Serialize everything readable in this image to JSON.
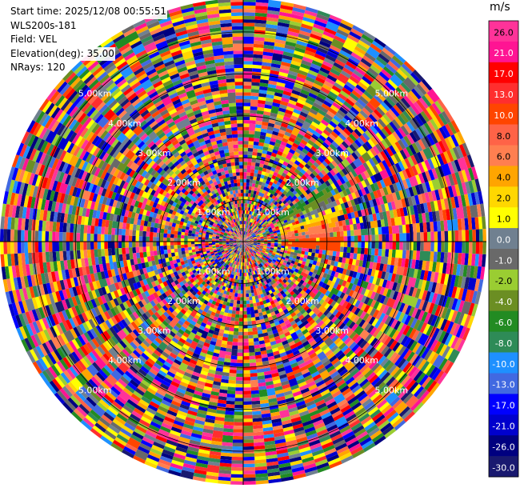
{
  "info": {
    "start_time": "Start time: 2025/12/08 00:55:51",
    "instrument": "WLS200s-181",
    "field": "Field: VEL",
    "elevation": "Elevation(deg): 35.00",
    "nrays": "NRays: 120"
  },
  "colorbar": {
    "title": "m/s",
    "ticks": [
      "26.0",
      "21.0",
      "17.0",
      "13.0",
      "10.0",
      "8.0",
      "6.0",
      "4.0",
      "2.0",
      "1.0",
      "0.0",
      "-1.0",
      "-2.0",
      "-4.0",
      "-6.0",
      "-8.0",
      "-10.0",
      "-13.0",
      "-17.0",
      "-21.0",
      "-26.0",
      "-30.0"
    ],
    "colors": [
      "#ff3399",
      "#ff1493",
      "#ff0000",
      "#ff2e2e",
      "#ff4500",
      "#ff6347",
      "#ff7f50",
      "#ffa500",
      "#ffd700",
      "#ffff00",
      "#708090",
      "#696969",
      "#9acd32",
      "#6b8e23",
      "#228b22",
      "#2e8b57",
      "#1e90ff",
      "#4169e1",
      "#0000ff",
      "#0000cd",
      "#000080",
      "#191970"
    ]
  },
  "chart_data": {
    "type": "heatmap",
    "projection": "polar-ppi",
    "field": "VEL",
    "units": "m/s",
    "nrays": 120,
    "range_rings_km": [
      1.0,
      2.0,
      3.0,
      4.0,
      5.0
    ],
    "ring_labels": [
      "1.00km",
      "2.00km",
      "3.00km",
      "4.00km",
      "5.00km"
    ],
    "max_range_km": 5.8,
    "gates_per_ray": 70,
    "notes_sector": {
      "azimuth_deg_from": 55,
      "azimuth_deg_to": 95,
      "range_km_from": 0.9,
      "range_km_to": 2.4,
      "velocity_ms_from": 8.0,
      "velocity_ms_to": -8.0
    }
  }
}
